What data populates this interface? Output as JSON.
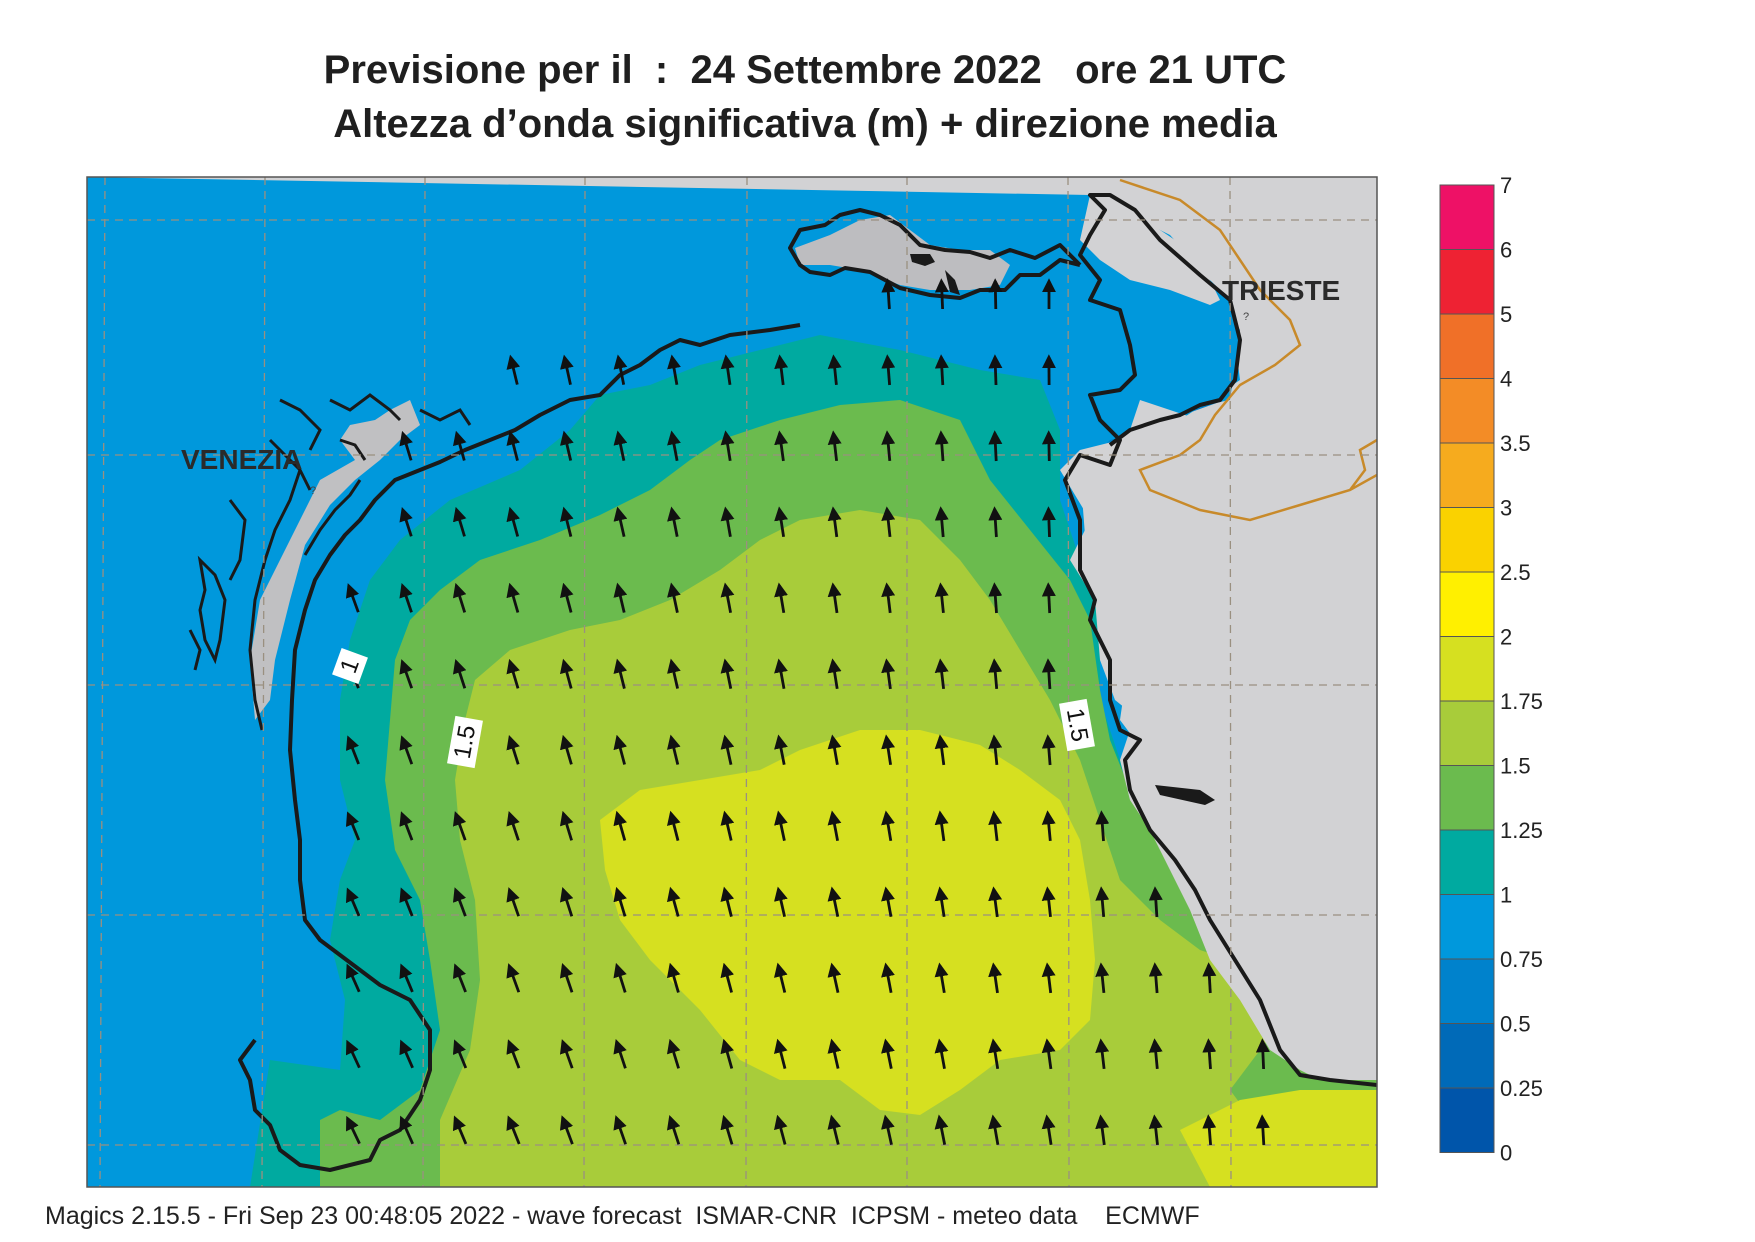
{
  "title": {
    "line1": "Previsione per il  :  24 Settembre 2022   ore 21 UTC",
    "line2": "Altezza d’onda significativa (m) + direzione media"
  },
  "footer": "Magics 2.15.5 - Fri Sep 23 00:48:05 2022 - wave forecast  ISMAR-CNR  ICPSM - meteo data    ECMWF",
  "places": {
    "venezia": "VENEZIA",
    "trieste": "TRIESTE"
  },
  "contour_labels": [
    "1",
    "1.5",
    "1.5"
  ],
  "legend": {
    "levels": [
      "7",
      "6",
      "5",
      "4",
      "3.5",
      "3",
      "2.5",
      "2",
      "1.75",
      "1.5",
      "1.25",
      "1",
      "0.75",
      "0.5",
      "0.25",
      "0"
    ],
    "colors": [
      "#ee1166",
      "#ee2233",
      "#f07028",
      "#f38c26",
      "#f6ab1e",
      "#fad200",
      "#fff000",
      "#d6e020",
      "#a8cc3a",
      "#6bbb4e",
      "#00aaa0",
      "#0098dc",
      "#0082cc",
      "#006ab8",
      "#0055aa"
    ]
  },
  "colors": {
    "land": "#d2d2d4",
    "coast": "#1a1a1a",
    "border": "#c88a2a",
    "arrow": "#111111"
  },
  "wave_direction": "NNW (arrows pointing north-north-west)"
}
